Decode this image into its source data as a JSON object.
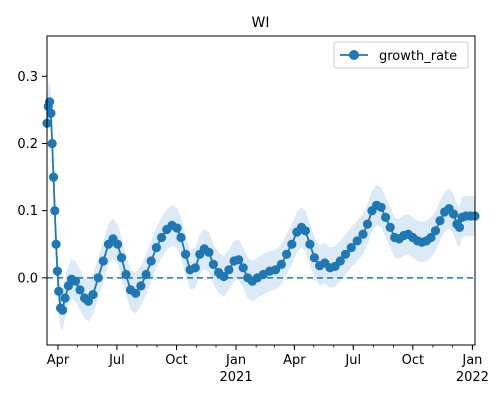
{
  "chart_data": {
    "type": "line",
    "title": "WI",
    "xlabel": "",
    "ylabel": "",
    "xlim": [
      "2020-03-15",
      "2022-01-05"
    ],
    "ylim": [
      -0.1,
      0.36
    ],
    "x_ticks": [
      {
        "date": "2020-04-01",
        "label": "Apr",
        "sub": ""
      },
      {
        "date": "2020-07-01",
        "label": "Jul",
        "sub": ""
      },
      {
        "date": "2020-10-01",
        "label": "Oct",
        "sub": ""
      },
      {
        "date": "2021-01-01",
        "label": "Jan",
        "sub": "2021"
      },
      {
        "date": "2021-04-01",
        "label": "Apr",
        "sub": ""
      },
      {
        "date": "2021-07-01",
        "label": "Jul",
        "sub": ""
      },
      {
        "date": "2021-10-01",
        "label": "Oct",
        "sub": ""
      },
      {
        "date": "2022-01-01",
        "label": "Jan",
        "sub": "2022"
      }
    ],
    "y_ticks": [
      0.0,
      0.1,
      0.2,
      0.3
    ],
    "y_tick_labels": [
      "0.0",
      "0.1",
      "0.2",
      "0.3"
    ],
    "reference_line": {
      "y": 0,
      "style": "dashed",
      "color": "#1f77b4"
    },
    "legend": {
      "position": "top-right"
    },
    "color": "#1f77b4",
    "band_color": "#dce9f6",
    "series": [
      {
        "name": "growth_rate",
        "points": [
          [
            "2020-03-15",
            0.23
          ],
          [
            "2020-03-17",
            0.255
          ],
          [
            "2020-03-19",
            0.262
          ],
          [
            "2020-03-21",
            0.245
          ],
          [
            "2020-03-23",
            0.2
          ],
          [
            "2020-03-25",
            0.15
          ],
          [
            "2020-03-27",
            0.1
          ],
          [
            "2020-03-29",
            0.05
          ],
          [
            "2020-03-31",
            0.01
          ],
          [
            "2020-04-02",
            -0.02
          ],
          [
            "2020-04-05",
            -0.045
          ],
          [
            "2020-04-08",
            -0.048
          ],
          [
            "2020-04-12",
            -0.03
          ],
          [
            "2020-04-17",
            -0.012
          ],
          [
            "2020-04-22",
            -0.002
          ],
          [
            "2020-04-28",
            -0.005
          ],
          [
            "2020-05-05",
            -0.018
          ],
          [
            "2020-05-12",
            -0.03
          ],
          [
            "2020-05-18",
            -0.035
          ],
          [
            "2020-05-25",
            -0.025
          ],
          [
            "2020-06-02",
            0.0
          ],
          [
            "2020-06-10",
            0.025
          ],
          [
            "2020-06-18",
            0.05
          ],
          [
            "2020-06-25",
            0.058
          ],
          [
            "2020-07-02",
            0.05
          ],
          [
            "2020-07-08",
            0.03
          ],
          [
            "2020-07-15",
            0.005
          ],
          [
            "2020-07-22",
            -0.018
          ],
          [
            "2020-07-30",
            -0.023
          ],
          [
            "2020-08-07",
            -0.012
          ],
          [
            "2020-08-15",
            0.005
          ],
          [
            "2020-08-23",
            0.025
          ],
          [
            "2020-08-31",
            0.045
          ],
          [
            "2020-09-08",
            0.06
          ],
          [
            "2020-09-16",
            0.072
          ],
          [
            "2020-09-24",
            0.078
          ],
          [
            "2020-10-02",
            0.074
          ],
          [
            "2020-10-08",
            0.06
          ],
          [
            "2020-10-15",
            0.035
          ],
          [
            "2020-10-22",
            0.012
          ],
          [
            "2020-10-30",
            0.015
          ],
          [
            "2020-11-06",
            0.035
          ],
          [
            "2020-11-13",
            0.043
          ],
          [
            "2020-11-20",
            0.038
          ],
          [
            "2020-11-27",
            0.02
          ],
          [
            "2020-12-05",
            0.008
          ],
          [
            "2020-12-13",
            0.002
          ],
          [
            "2020-12-21",
            0.012
          ],
          [
            "2020-12-29",
            0.025
          ],
          [
            "2021-01-05",
            0.027
          ],
          [
            "2021-01-12",
            0.015
          ],
          [
            "2021-01-19",
            0.0
          ],
          [
            "2021-01-26",
            -0.005
          ],
          [
            "2021-02-03",
            0.0
          ],
          [
            "2021-02-12",
            0.005
          ],
          [
            "2021-02-22",
            0.01
          ],
          [
            "2021-03-03",
            0.012
          ],
          [
            "2021-03-12",
            0.02
          ],
          [
            "2021-03-20",
            0.035
          ],
          [
            "2021-03-28",
            0.05
          ],
          [
            "2021-04-05",
            0.068
          ],
          [
            "2021-04-12",
            0.075
          ],
          [
            "2021-04-18",
            0.07
          ],
          [
            "2021-04-25",
            0.05
          ],
          [
            "2021-05-02",
            0.03
          ],
          [
            "2021-05-10",
            0.018
          ],
          [
            "2021-05-18",
            0.022
          ],
          [
            "2021-05-26",
            0.015
          ],
          [
            "2021-06-03",
            0.017
          ],
          [
            "2021-06-11",
            0.025
          ],
          [
            "2021-06-19",
            0.035
          ],
          [
            "2021-06-28",
            0.045
          ],
          [
            "2021-07-07",
            0.055
          ],
          [
            "2021-07-16",
            0.065
          ],
          [
            "2021-07-23",
            0.08
          ],
          [
            "2021-07-30",
            0.1
          ],
          [
            "2021-08-06",
            0.108
          ],
          [
            "2021-08-13",
            0.105
          ],
          [
            "2021-08-20",
            0.09
          ],
          [
            "2021-08-27",
            0.075
          ],
          [
            "2021-09-03",
            0.06
          ],
          [
            "2021-09-10",
            0.058
          ],
          [
            "2021-09-17",
            0.063
          ],
          [
            "2021-09-24",
            0.065
          ],
          [
            "2021-10-01",
            0.06
          ],
          [
            "2021-10-08",
            0.055
          ],
          [
            "2021-10-15",
            0.053
          ],
          [
            "2021-10-22",
            0.055
          ],
          [
            "2021-10-29",
            0.06
          ],
          [
            "2021-11-05",
            0.07
          ],
          [
            "2021-11-12",
            0.085
          ],
          [
            "2021-11-19",
            0.098
          ],
          [
            "2021-11-26",
            0.103
          ],
          [
            "2021-12-03",
            0.095
          ],
          [
            "2021-12-08",
            0.08
          ],
          [
            "2021-12-12",
            0.075
          ],
          [
            "2021-12-16",
            0.09
          ],
          [
            "2021-12-22",
            0.092
          ],
          [
            "2021-12-29",
            0.092
          ],
          [
            "2022-01-05",
            0.092
          ]
        ]
      }
    ]
  }
}
